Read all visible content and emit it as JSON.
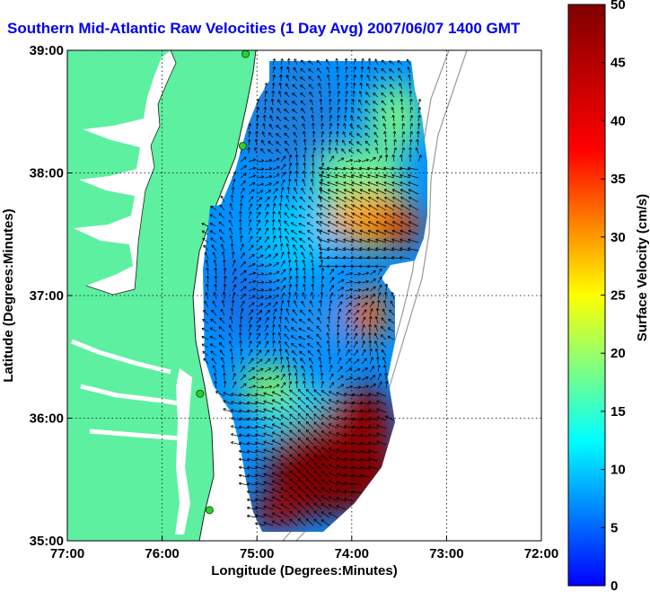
{
  "map": {
    "title": "Southern Mid-Atlantic Raw Velocities (1 Day Avg) 2007/06/07 1400 GMT",
    "xlabel": "Longitude (Degrees:Minutes)",
    "ylabel": "Latitude (Degrees:Minutes)",
    "x_ticks": [
      {
        "value": -77,
        "label": "77:00"
      },
      {
        "value": -76,
        "label": "76:00"
      },
      {
        "value": -75,
        "label": "75:00"
      },
      {
        "value": -74,
        "label": "74:00"
      },
      {
        "value": -73,
        "label": "73:00"
      },
      {
        "value": -72,
        "label": "72:00"
      }
    ],
    "y_ticks": [
      {
        "value": 35,
        "label": "35:00"
      },
      {
        "value": 36,
        "label": "36:00"
      },
      {
        "value": 37,
        "label": "37:00"
      },
      {
        "value": 38,
        "label": "38:00"
      },
      {
        "value": 39,
        "label": "39:00"
      }
    ],
    "xlim": [
      -77,
      -72
    ],
    "ylim": [
      35,
      39
    ],
    "grid": true,
    "land_color": "#5df0a0",
    "water_color": "#ffffff"
  },
  "colorbar": {
    "label": "Surface Velocity (cm/s)",
    "min": 0,
    "max": 50,
    "ticks": [
      {
        "value": 0,
        "label": "0"
      },
      {
        "value": 5,
        "label": "5"
      },
      {
        "value": 10,
        "label": "10"
      },
      {
        "value": 15,
        "label": "15"
      },
      {
        "value": 20,
        "label": "20"
      },
      {
        "value": 25,
        "label": "25"
      },
      {
        "value": 30,
        "label": "30"
      },
      {
        "value": 35,
        "label": "35"
      },
      {
        "value": 40,
        "label": "40"
      },
      {
        "value": 45,
        "label": "45"
      },
      {
        "value": 50,
        "label": "50"
      }
    ]
  },
  "stations": [
    {
      "lon": -75.12,
      "lat": 38.97
    },
    {
      "lon": -75.15,
      "lat": 38.22
    },
    {
      "lon": -75.6,
      "lat": 36.2
    },
    {
      "lon": -75.5,
      "lat": 35.25
    }
  ]
}
